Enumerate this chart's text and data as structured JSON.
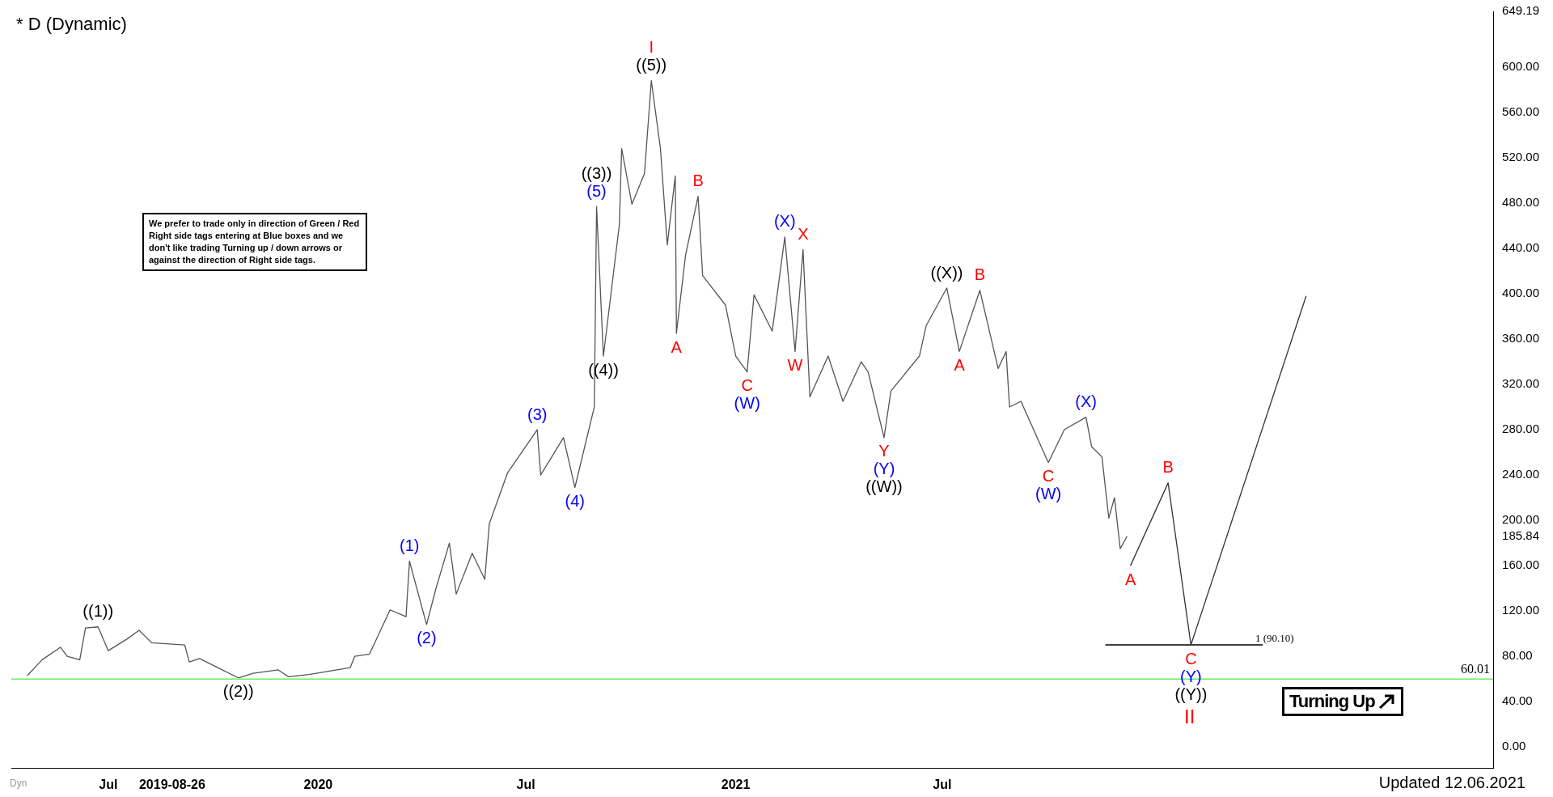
{
  "chart_data": {
    "type": "line",
    "title": "* D (Dynamic)",
    "xlim": [
      "2019-04-07",
      "2022-10-27"
    ],
    "xticks": [
      {
        "value": "2019-07-01",
        "label": "Jul"
      },
      {
        "value": "2019-08-26",
        "label": "2019-08-26"
      },
      {
        "value": "2020-01-01",
        "label": "2020"
      },
      {
        "value": "2020-07-01",
        "label": "Jul"
      },
      {
        "value": "2021-01-01",
        "label": "2021"
      },
      {
        "value": "2021-07-01",
        "label": "Jul"
      }
    ],
    "ylim": [
      -19,
      649.19
    ],
    "yticks": [
      {
        "value": 0,
        "label": "0.00"
      },
      {
        "value": 40,
        "label": "40.00"
      },
      {
        "value": 80,
        "label": "80.00"
      },
      {
        "value": 120,
        "label": "120.00"
      },
      {
        "value": 160,
        "label": "160.00"
      },
      {
        "value": 185.84,
        "label": "185.84"
      },
      {
        "value": 200,
        "label": "200.00"
      },
      {
        "value": 240,
        "label": "240.00"
      },
      {
        "value": 280,
        "label": "280.00"
      },
      {
        "value": 320,
        "label": "320.00"
      },
      {
        "value": 360,
        "label": "360.00"
      },
      {
        "value": 400,
        "label": "400.00"
      },
      {
        "value": 440,
        "label": "440.00"
      },
      {
        "value": 480,
        "label": "480.00"
      },
      {
        "value": 520,
        "label": "520.00"
      },
      {
        "value": 560,
        "label": "560.00"
      },
      {
        "value": 600,
        "label": "600.00"
      },
      {
        "value": 649.19,
        "label": "649.19"
      }
    ],
    "grid": false,
    "legend": false,
    "marker": "none",
    "line_style": "solid",
    "series": [
      {
        "color": "#555555",
        "x": [
          "2019-04-21",
          "2019-05-04",
          "2019-05-20",
          "2019-05-26",
          "2019-06-06",
          "2019-06-11",
          "2019-06-22",
          "2019-07-01",
          "2019-07-17",
          "2019-07-28",
          "2019-08-08",
          "2019-09-06",
          "2019-09-10",
          "2019-09-19",
          "2019-10-05",
          "2019-10-23",
          "2019-11-05",
          "2019-11-27",
          "2019-12-06",
          "2019-12-24",
          "2020-01-11",
          "2020-01-29",
          "2020-02-02",
          "2020-02-15",
          "2020-03-04",
          "2020-03-18",
          "2020-03-21",
          "2020-04-05",
          "2020-04-13",
          "2020-04-25",
          "2020-05-01",
          "2020-05-15",
          "2020-05-26",
          "2020-05-30",
          "2020-06-15",
          "2020-07-11",
          "2020-07-14",
          "2020-08-03",
          "2020-08-13",
          "2020-08-30",
          "2020-09-01",
          "2020-09-07",
          "2020-09-21",
          "2020-09-23",
          "2020-10-02",
          "2020-10-13",
          "2020-10-19",
          "2020-10-27",
          "2020-11-02",
          "2020-11-09",
          "2020-11-10",
          "2020-11-18",
          "2020-11-29",
          "2020-12-03",
          "2020-12-23",
          "2021-01-01",
          "2021-01-11",
          "2021-01-17",
          "2021-02-02",
          "2021-02-13",
          "2021-02-22",
          "2021-03-01",
          "2021-03-07",
          "2021-03-23",
          "2021-04-05",
          "2021-04-21",
          "2021-04-27",
          "2021-05-11",
          "2021-05-17",
          "2021-06-11",
          "2021-06-17",
          "2021-07-05",
          "2021-07-16",
          "2021-08-03",
          "2021-08-19",
          "2021-08-26",
          "2021-08-29",
          "2021-09-08",
          "2021-10-02",
          "2021-10-16",
          "2021-11-04",
          "2021-11-09",
          "2021-11-18",
          "2021-11-24",
          "2021-11-29",
          "2021-12-04",
          "2021-12-10"
        ],
        "values": [
          63,
          77,
          88,
          80,
          77,
          105,
          106,
          85,
          95,
          103,
          92,
          90,
          75,
          78,
          70,
          61,
          65,
          68,
          62,
          64,
          67,
          70,
          80,
          82,
          121,
          115,
          164,
          108,
          139,
          180,
          135,
          171,
          148,
          197,
          242,
          280,
          240,
          273,
          229,
          300,
          477,
          345,
          461,
          528,
          479,
          506,
          588,
          528,
          443,
          504,
          365,
          434,
          486,
          416,
          390,
          345,
          331,
          399,
          367,
          450,
          349,
          439,
          309,
          345,
          305,
          340,
          331,
          273,
          314,
          345,
          372,
          405,
          349,
          403,
          334,
          349,
          300,
          305,
          251,
          280,
          291,
          265,
          256,
          202,
          220,
          175,
          186
        ]
      },
      {
        "color": "#333333",
        "x": [
          "2021-12-13",
          "2022-01-15",
          "2022-02-04",
          "2022-05-16"
        ],
        "values": [
          160,
          233,
          90.1,
          398
        ]
      },
      {
        "color": "#000000",
        "x": [
          "2021-11-21",
          "2022-04-08"
        ],
        "values": [
          90.1,
          90.1
        ]
      }
    ],
    "ref_lines": [
      {
        "axis": "y",
        "value": 60.01,
        "label": "60.01",
        "color": "#66ee66"
      }
    ],
    "annotations": [
      "We prefer to trade only in direction of Green / Red Right side tags entering at Blue boxes and we don't like trading Turning up / down arrows or against the direction of Right side tags.",
      "Turning Up",
      "Updated 12.06.2021",
      "Dyn",
      "1 (90.10)",
      "II",
      {
        "text": "((1))",
        "x": "2019-06-22",
        "y": 106
      },
      {
        "text": "((2))",
        "x": "2019-10-23",
        "y": 61
      },
      {
        "text": "(1)",
        "x": "2020-03-21",
        "y": 164
      },
      {
        "text": "(2)",
        "x": "2020-04-05",
        "y": 108
      },
      {
        "text": "(3)",
        "x": "2020-07-11",
        "y": 280
      },
      {
        "text": "(4)",
        "x": "2020-08-13",
        "y": 229
      },
      {
        "text": "(5)",
        "x": "2020-09-01",
        "y": 477
      },
      {
        "text": "((3))",
        "x": "2020-09-01",
        "y": 477
      },
      {
        "text": "((4))",
        "x": "2020-09-07",
        "y": 345
      },
      {
        "text": "((5))",
        "x": "2020-10-19",
        "y": 588
      },
      {
        "text": "I",
        "x": "2020-10-19",
        "y": 588
      },
      {
        "text": "A",
        "x": "2020-11-10",
        "y": 365
      },
      {
        "text": "B",
        "x": "2020-11-29",
        "y": 486
      },
      {
        "text": "C",
        "x": "2021-01-11",
        "y": 331
      },
      {
        "text": "(W)",
        "x": "2021-01-11",
        "y": 331
      },
      {
        "text": "(X)",
        "x": "2021-02-13",
        "y": 450
      },
      {
        "text": "W",
        "x": "2021-02-22",
        "y": 349
      },
      {
        "text": "X",
        "x": "2021-03-01",
        "y": 439
      },
      {
        "text": "Y",
        "x": "2021-05-11",
        "y": 273
      },
      {
        "text": "(Y)",
        "x": "2021-05-11",
        "y": 273
      },
      {
        "text": "((W))",
        "x": "2021-05-11",
        "y": 273
      },
      {
        "text": "((X))",
        "x": "2021-07-05",
        "y": 405
      },
      {
        "text": "A",
        "x": "2021-07-16",
        "y": 349
      },
      {
        "text": "B",
        "x": "2021-08-03",
        "y": 403
      },
      {
        "text": "C",
        "x": "2021-10-02",
        "y": 251
      },
      {
        "text": "(W)",
        "x": "2021-10-02",
        "y": 251
      },
      {
        "text": "(X)",
        "x": "2021-11-04",
        "y": 291
      },
      {
        "text": "A",
        "x": "2021-12-13",
        "y": 160
      },
      {
        "text": "B",
        "x": "2022-01-15",
        "y": 233
      },
      {
        "text": "C",
        "x": "2022-02-04",
        "y": 90.1
      },
      {
        "text": "(Y)",
        "x": "2022-02-04",
        "y": 90.1
      },
      {
        "text": "((Y))",
        "x": "2022-02-04",
        "y": 90.1
      }
    ]
  }
}
